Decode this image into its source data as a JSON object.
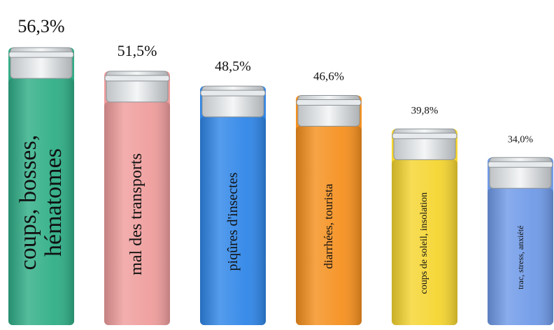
{
  "chart_data": {
    "type": "bar",
    "categories": [
      "coups, bosses, hématomes",
      "mal des transports",
      "piqûres d'insectes",
      "diarrhées, tourista",
      "coups de soleil, insolation",
      "trac, stress, anxiété"
    ],
    "values": [
      56.3,
      51.5,
      48.5,
      46.6,
      39.8,
      34.0
    ],
    "value_labels": [
      "56,3%",
      "51,5%",
      "48,5%",
      "46,6%",
      "39,8%",
      "34,0%"
    ],
    "colors": [
      "#2fae86",
      "#ef9d9c",
      "#2f86e8",
      "#f5901e",
      "#f5d530",
      "#6f9ae8"
    ]
  }
}
